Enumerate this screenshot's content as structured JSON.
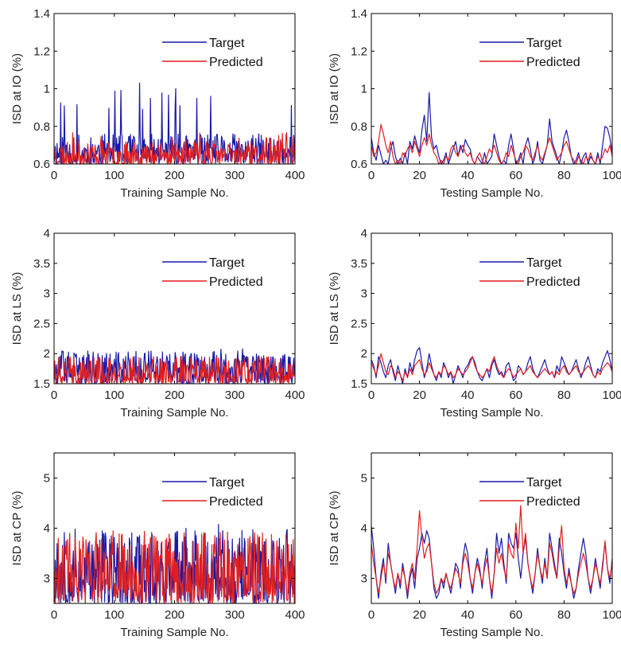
{
  "chart_data": [
    {
      "type": "line",
      "panel": "train-io",
      "xlabel": "Training Sample No.",
      "ylabel": "ISD at IO (%)",
      "xlim": [
        0,
        400
      ],
      "ylim": [
        0.6,
        1.4
      ],
      "xticks": [
        0,
        100,
        200,
        300,
        400
      ],
      "yticks": [
        0.6,
        0.8,
        1,
        1.2,
        1.4
      ],
      "ytick_labels": [
        "0.6",
        "0.8",
        "1",
        "1.2",
        "1.4"
      ],
      "legend_position": "upper-right",
      "series": [
        {
          "name": "Target",
          "color": "#1a1aa8",
          "pattern": {
            "n": 401,
            "base": 0.6,
            "min": 0.6,
            "max": 1.05,
            "amp": 0.16,
            "seed": 11
          }
        },
        {
          "name": "Predicted",
          "color": "#e01f1f",
          "pattern": {
            "n": 401,
            "base": 0.6,
            "min": 0.6,
            "max": 0.77,
            "amp": 0.12,
            "seed": 23
          }
        }
      ]
    },
    {
      "type": "line",
      "panel": "test-io",
      "xlabel": "Testing Sample No.",
      "ylabel": "ISD at IO (%)",
      "xlim": [
        0,
        100
      ],
      "ylim": [
        0.6,
        1.4
      ],
      "xticks": [
        0,
        20,
        40,
        60,
        80,
        100
      ],
      "yticks": [
        0.6,
        0.8,
        1,
        1.2,
        1.4
      ],
      "ytick_labels": [
        "0.6",
        "0.8",
        "1",
        "1.2",
        "1.4"
      ],
      "legend_position": "upper-right",
      "series": [
        {
          "name": "Target",
          "color": "#1a1aa8",
          "values": [
            0.74,
            0.66,
            0.62,
            0.7,
            0.65,
            0.6,
            0.62,
            0.6,
            0.68,
            0.72,
            0.64,
            0.6,
            0.63,
            0.6,
            0.66,
            0.6,
            0.72,
            0.68,
            0.75,
            0.7,
            0.66,
            0.78,
            0.86,
            0.72,
            0.98,
            0.74,
            0.68,
            0.7,
            0.64,
            0.6,
            0.62,
            0.66,
            0.6,
            0.64,
            0.68,
            0.72,
            0.64,
            0.7,
            0.66,
            0.73,
            0.7,
            0.68,
            0.62,
            0.6,
            0.64,
            0.62,
            0.6,
            0.66,
            0.6,
            0.62,
            0.64,
            0.76,
            0.7,
            0.64,
            0.6,
            0.62,
            0.6,
            0.7,
            0.76,
            0.68,
            0.6,
            0.62,
            0.66,
            0.6,
            0.7,
            0.74,
            0.68,
            0.6,
            0.64,
            0.72,
            0.62,
            0.6,
            0.65,
            0.7,
            0.84,
            0.72,
            0.68,
            0.64,
            0.6,
            0.66,
            0.74,
            0.78,
            0.72,
            0.64,
            0.6,
            0.62,
            0.66,
            0.6,
            0.64,
            0.66,
            0.6,
            0.64,
            0.62,
            0.6,
            0.66,
            0.6,
            0.7,
            0.8,
            0.79,
            0.74,
            0.66
          ]
        },
        {
          "name": "Predicted",
          "color": "#e01f1f",
          "values": [
            0.7,
            0.64,
            0.66,
            0.72,
            0.81,
            0.76,
            0.7,
            0.66,
            0.72,
            0.64,
            0.6,
            0.62,
            0.6,
            0.66,
            0.64,
            0.68,
            0.7,
            0.66,
            0.72,
            0.68,
            0.64,
            0.7,
            0.74,
            0.7,
            0.76,
            0.7,
            0.66,
            0.64,
            0.6,
            0.62,
            0.6,
            0.64,
            0.62,
            0.68,
            0.7,
            0.66,
            0.64,
            0.68,
            0.7,
            0.66,
            0.64,
            0.66,
            0.62,
            0.6,
            0.64,
            0.66,
            0.62,
            0.6,
            0.64,
            0.68,
            0.66,
            0.7,
            0.66,
            0.62,
            0.6,
            0.62,
            0.66,
            0.64,
            0.7,
            0.66,
            0.62,
            0.6,
            0.64,
            0.66,
            0.7,
            0.68,
            0.64,
            0.62,
            0.66,
            0.7,
            0.64,
            0.62,
            0.66,
            0.7,
            0.74,
            0.7,
            0.66,
            0.62,
            0.64,
            0.66,
            0.7,
            0.72,
            0.68,
            0.64,
            0.62,
            0.6,
            0.64,
            0.62,
            0.6,
            0.64,
            0.62,
            0.66,
            0.62,
            0.6,
            0.64,
            0.62,
            0.64,
            0.68,
            0.66,
            0.7,
            0.64
          ]
        }
      ]
    },
    {
      "type": "line",
      "panel": "train-ls",
      "xlabel": "Training Sample No.",
      "ylabel": "ISD at LS (%)",
      "xlim": [
        0,
        400
      ],
      "ylim": [
        1.5,
        4
      ],
      "xticks": [
        0,
        100,
        200,
        300,
        400
      ],
      "yticks": [
        1.5,
        2,
        2.5,
        3,
        3.5,
        4
      ],
      "ytick_labels": [
        "1.5",
        "2",
        "2.5",
        "3",
        "3.5",
        "4"
      ],
      "legend_position": "upper-right",
      "series": [
        {
          "name": "Target",
          "color": "#1a1aa8",
          "pattern": {
            "n": 401,
            "base": 1.5,
            "min": 1.5,
            "max": 2.08,
            "amp": 0.55,
            "seed": 37
          }
        },
        {
          "name": "Predicted",
          "color": "#e01f1f",
          "pattern": {
            "n": 401,
            "base": 1.5,
            "min": 1.5,
            "max": 1.97,
            "amp": 0.45,
            "seed": 41
          }
        }
      ]
    },
    {
      "type": "line",
      "panel": "test-ls",
      "xlabel": "Testing Sample No.",
      "ylabel": "ISD at LS (%)",
      "xlim": [
        0,
        100
      ],
      "ylim": [
        1.5,
        4
      ],
      "xticks": [
        0,
        20,
        40,
        60,
        80,
        100
      ],
      "yticks": [
        1.5,
        2,
        2.5,
        3,
        3.5,
        4
      ],
      "ytick_labels": [
        "1.5",
        "2",
        "2.5",
        "3",
        "3.5",
        "4"
      ],
      "legend_position": "upper-right",
      "series": [
        {
          "name": "Target",
          "color": "#1a1aa8",
          "values": [
            1.9,
            1.8,
            1.6,
            1.95,
            1.85,
            1.7,
            1.6,
            1.8,
            1.9,
            1.7,
            1.55,
            1.8,
            1.65,
            1.5,
            1.75,
            1.6,
            1.85,
            1.7,
            1.9,
            2.05,
            2.1,
            1.85,
            1.6,
            1.75,
            2.0,
            1.8,
            1.65,
            1.55,
            1.7,
            1.6,
            1.85,
            1.75,
            1.6,
            1.7,
            1.5,
            1.65,
            1.8,
            1.7,
            1.6,
            1.75,
            1.8,
            1.9,
            1.95,
            1.85,
            1.7,
            1.6,
            1.55,
            1.65,
            1.75,
            1.6,
            1.8,
            1.9,
            1.75,
            1.65,
            1.7,
            1.6,
            1.8,
            1.85,
            1.7,
            1.55,
            1.6,
            1.8,
            1.75,
            1.65,
            1.7,
            1.85,
            1.95,
            1.75,
            1.65,
            1.6,
            1.7,
            1.8,
            1.9,
            1.75,
            1.65,
            1.7,
            1.6,
            1.8,
            1.7,
            1.95,
            1.85,
            1.75,
            1.65,
            1.7,
            1.8,
            1.9,
            1.75,
            1.6,
            1.7,
            1.85,
            1.95,
            1.8,
            1.65,
            1.6,
            1.75,
            1.7,
            1.85,
            1.95,
            2.05,
            1.9,
            1.7
          ]
        },
        {
          "name": "Predicted",
          "color": "#e01f1f",
          "values": [
            1.85,
            1.75,
            1.65,
            1.8,
            2.0,
            1.85,
            1.7,
            1.65,
            1.8,
            1.75,
            1.6,
            1.7,
            1.65,
            1.55,
            1.7,
            1.6,
            1.75,
            1.65,
            1.8,
            1.85,
            1.9,
            1.75,
            1.65,
            1.7,
            1.85,
            1.75,
            1.65,
            1.6,
            1.7,
            1.65,
            1.8,
            1.75,
            1.65,
            1.7,
            1.6,
            1.65,
            1.75,
            1.7,
            1.65,
            1.7,
            1.75,
            1.85,
            1.95,
            1.8,
            1.7,
            1.65,
            1.6,
            1.65,
            1.75,
            1.7,
            1.85,
            1.95,
            1.8,
            1.7,
            1.65,
            1.6,
            1.7,
            1.75,
            1.7,
            1.6,
            1.65,
            1.7,
            1.75,
            1.65,
            1.7,
            1.75,
            1.8,
            1.7,
            1.65,
            1.6,
            1.65,
            1.7,
            1.75,
            1.7,
            1.65,
            1.7,
            1.6,
            1.7,
            1.65,
            1.75,
            1.8,
            1.7,
            1.65,
            1.7,
            1.75,
            1.8,
            1.7,
            1.65,
            1.7,
            1.75,
            1.8,
            1.75,
            1.65,
            1.6,
            1.7,
            1.65,
            1.75,
            1.8,
            1.85,
            1.8,
            1.7
          ]
        }
      ]
    },
    {
      "type": "line",
      "panel": "train-cp",
      "xlabel": "Training Sample No.",
      "ylabel": "ISD at CP (%)",
      "xlim": [
        0,
        400
      ],
      "ylim": [
        2.5,
        5.5
      ],
      "xticks": [
        0,
        100,
        200,
        300,
        400
      ],
      "yticks": [
        3,
        4,
        5
      ],
      "ytick_labels": [
        "3",
        "4",
        "5"
      ],
      "legend_position": "upper-right",
      "series": [
        {
          "name": "Target",
          "color": "#1a1aa8",
          "pattern": {
            "n": 401,
            "base": 2.5,
            "min": 2.5,
            "max": 4.08,
            "amp": 1.5,
            "seed": 53
          }
        },
        {
          "name": "Predicted",
          "color": "#e01f1f",
          "pattern": {
            "n": 401,
            "base": 2.5,
            "min": 2.5,
            "max": 4.0,
            "amp": 1.45,
            "seed": 61
          }
        }
      ]
    },
    {
      "type": "line",
      "panel": "test-cp",
      "xlabel": "Testing Sample No.",
      "ylabel": "ISD at CP (%)",
      "xlim": [
        0,
        100
      ],
      "ylim": [
        2.5,
        5.5
      ],
      "xticks": [
        0,
        20,
        40,
        60,
        80,
        100
      ],
      "yticks": [
        3,
        4,
        5
      ],
      "ytick_labels": [
        "3",
        "4",
        "5"
      ],
      "legend_position": "upper-right",
      "series": [
        {
          "name": "Target",
          "color": "#1a1aa8",
          "values": [
            4.05,
            3.6,
            3.0,
            2.6,
            3.1,
            3.4,
            2.9,
            3.7,
            3.3,
            3.0,
            2.7,
            3.1,
            2.8,
            3.3,
            3.0,
            2.6,
            3.0,
            3.2,
            2.8,
            3.4,
            3.6,
            3.9,
            3.7,
            3.95,
            3.8,
            3.3,
            2.8,
            2.6,
            2.7,
            3.0,
            2.8,
            3.1,
            2.9,
            2.7,
            3.0,
            3.3,
            3.2,
            2.8,
            3.4,
            3.7,
            3.5,
            3.0,
            2.7,
            3.1,
            3.4,
            3.2,
            2.8,
            3.3,
            3.6,
            3.0,
            2.6,
            3.1,
            3.9,
            3.5,
            3.8,
            3.3,
            2.9,
            3.9,
            3.7,
            3.6,
            3.9,
            3.4,
            3.0,
            3.5,
            3.8,
            3.3,
            3.0,
            2.7,
            3.1,
            3.6,
            3.2,
            2.9,
            3.4,
            3.0,
            3.9,
            3.6,
            3.3,
            3.0,
            3.8,
            3.5,
            3.1,
            2.8,
            3.2,
            2.9,
            2.6,
            2.8,
            3.2,
            3.5,
            3.8,
            3.5,
            3.0,
            2.7,
            3.0,
            3.4,
            3.1,
            2.8,
            3.3,
            3.7,
            3.2,
            2.9,
            3.4
          ]
        },
        {
          "name": "Predicted",
          "color": "#e01f1f",
          "values": [
            3.7,
            3.3,
            3.0,
            2.7,
            3.0,
            3.3,
            3.0,
            3.5,
            3.3,
            3.0,
            2.8,
            3.1,
            2.9,
            3.2,
            3.0,
            2.7,
            3.1,
            3.3,
            3.0,
            3.6,
            4.35,
            3.8,
            3.4,
            3.6,
            3.7,
            3.3,
            2.9,
            2.7,
            2.8,
            3.0,
            2.9,
            3.1,
            2.9,
            2.8,
            3.0,
            3.2,
            3.1,
            2.9,
            3.3,
            3.5,
            3.3,
            3.0,
            2.8,
            3.1,
            3.3,
            3.1,
            2.9,
            3.2,
            3.4,
            3.0,
            2.7,
            3.1,
            3.6,
            3.3,
            3.5,
            3.2,
            3.0,
            3.7,
            3.5,
            3.4,
            4.1,
            3.6,
            4.45,
            3.5,
            3.9,
            3.3,
            3.0,
            2.8,
            3.1,
            3.5,
            3.2,
            3.0,
            3.3,
            3.0,
            3.7,
            3.5,
            3.2,
            3.0,
            3.6,
            4.05,
            3.2,
            2.9,
            3.1,
            2.9,
            2.7,
            2.8,
            3.1,
            3.3,
            3.5,
            3.3,
            3.0,
            2.8,
            3.0,
            3.3,
            3.1,
            2.9,
            3.2,
            3.75,
            3.2,
            3.0,
            3.3
          ]
        }
      ]
    }
  ]
}
